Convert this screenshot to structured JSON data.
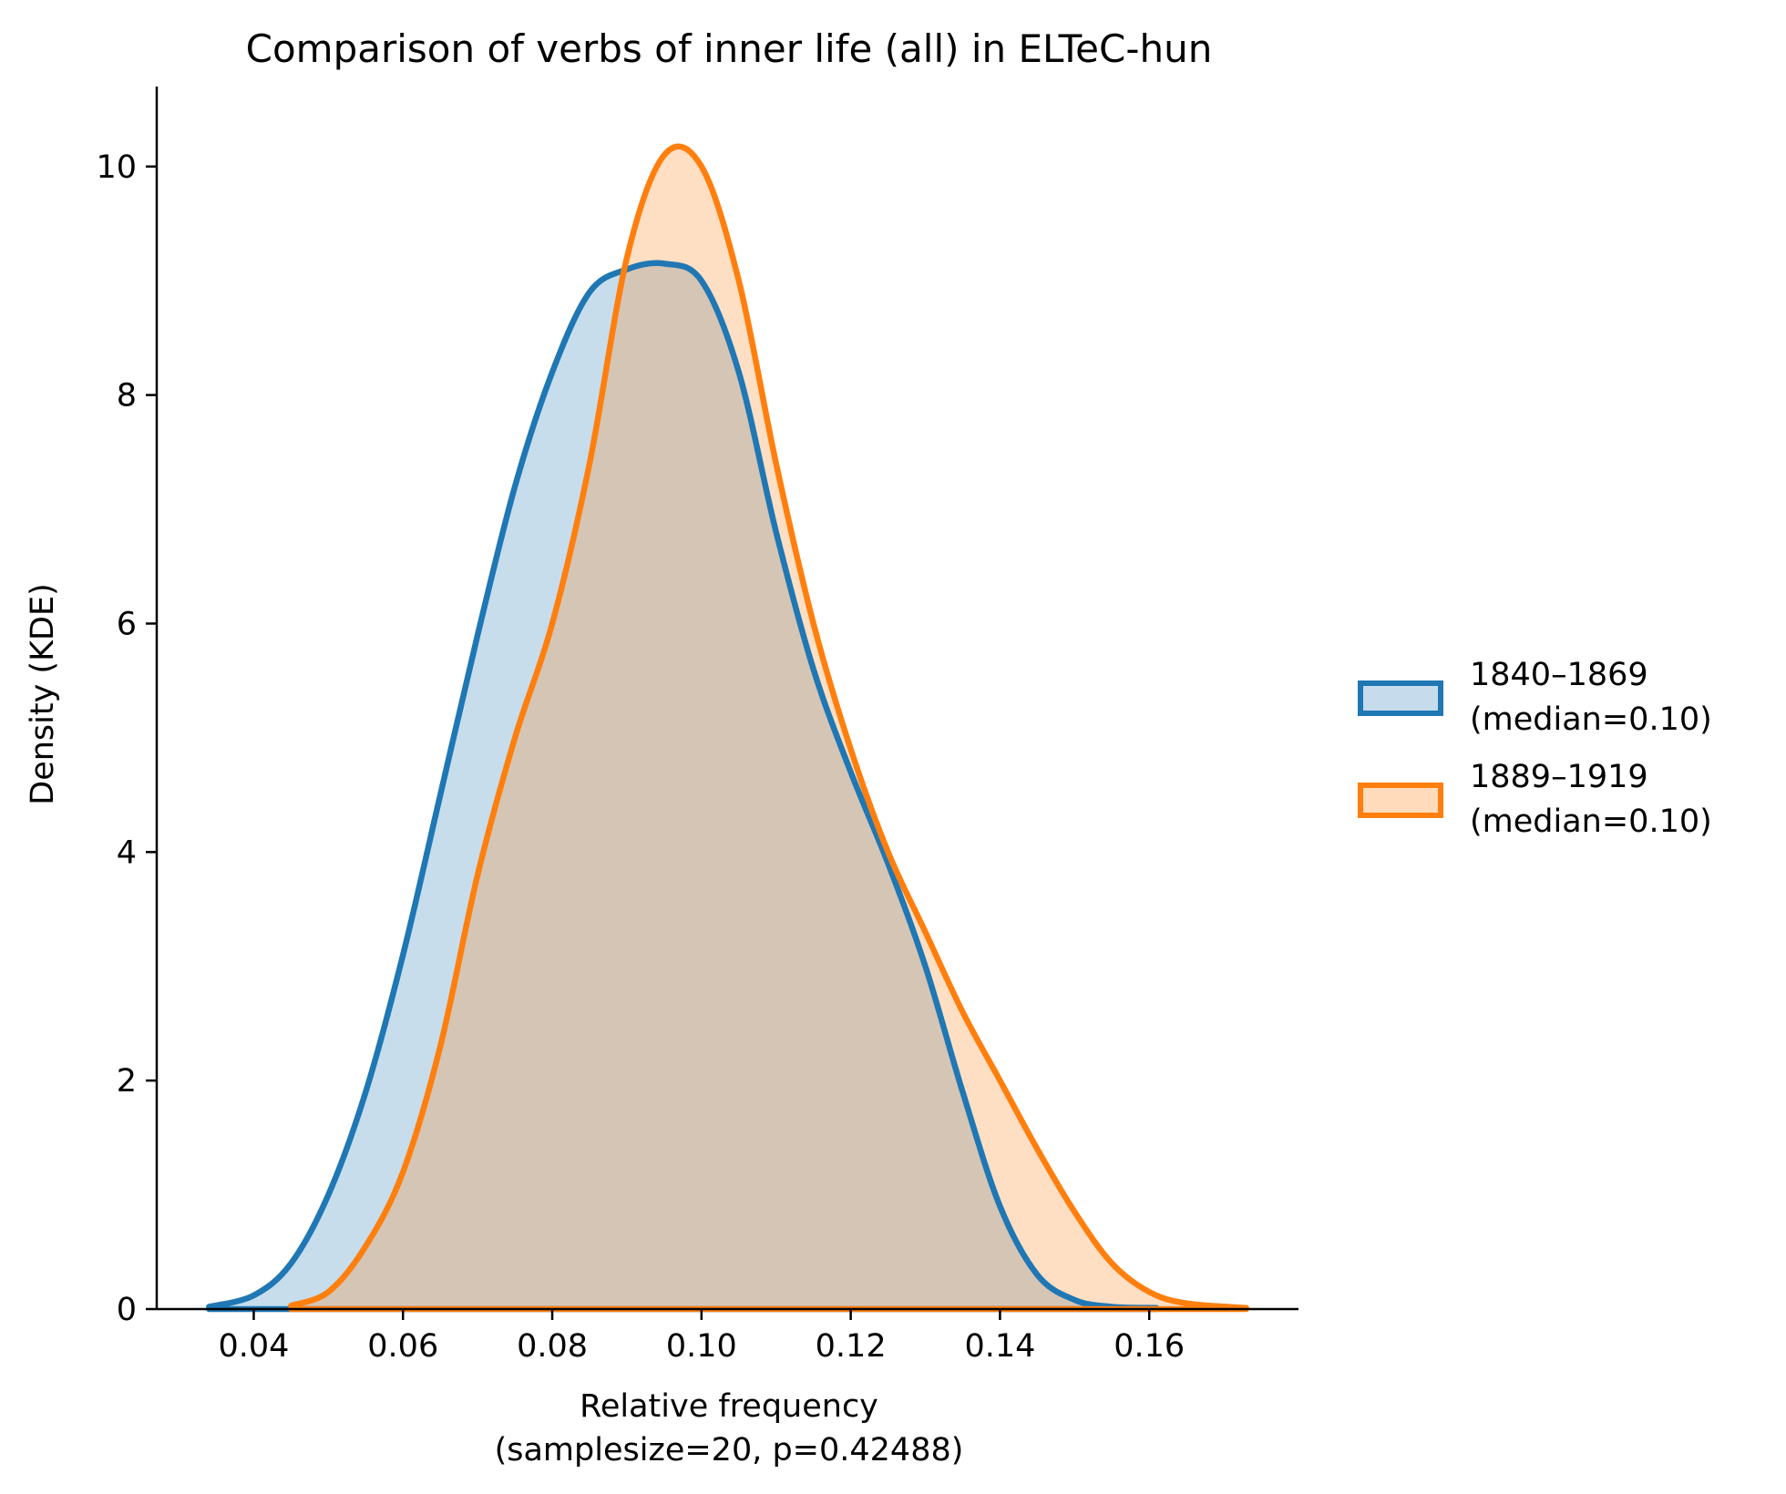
{
  "chart_data": {
    "type": "area",
    "title": "Comparison of verbs of inner life (all) in ELTeC-hun",
    "xlabel": "Relative frequency",
    "xlabel_sub": "(samplesize=20, p=0.42488)",
    "ylabel": "Density (KDE)",
    "xlim": [
      0.027,
      0.18
    ],
    "ylim": [
      0,
      10.7
    ],
    "x_ticks": [
      0.04,
      0.06,
      0.08,
      0.1,
      0.12,
      0.14,
      0.16
    ],
    "x_tick_labels": [
      "0.04",
      "0.06",
      "0.08",
      "0.10",
      "0.12",
      "0.14",
      "0.16"
    ],
    "y_ticks": [
      0,
      2,
      4,
      6,
      8,
      10
    ],
    "y_tick_labels": [
      "0",
      "2",
      "4",
      "6",
      "8",
      "10"
    ],
    "grid": false,
    "legend_position": "right",
    "series": [
      {
        "name": "1840–1869",
        "name_sub": "(median=0.10)",
        "color": "#1f77b4",
        "fill_color": "#c6dbeb",
        "x": [
          0.034,
          0.04,
          0.045,
          0.05,
          0.055,
          0.06,
          0.065,
          0.07,
          0.075,
          0.08,
          0.085,
          0.09,
          0.095,
          0.1,
          0.105,
          0.11,
          0.115,
          0.12,
          0.125,
          0.13,
          0.135,
          0.14,
          0.145,
          0.15,
          0.155,
          0.161
        ],
        "y": [
          0.02,
          0.12,
          0.4,
          1.0,
          1.9,
          3.1,
          4.5,
          5.9,
          7.2,
          8.2,
          8.9,
          9.1,
          9.15,
          9.0,
          8.2,
          6.8,
          5.6,
          4.7,
          3.9,
          3.0,
          1.9,
          0.9,
          0.3,
          0.08,
          0.02,
          0.01
        ]
      },
      {
        "name": "1889–1919",
        "name_sub": "(median=0.10)",
        "color": "#ff7f0e",
        "fill_color": "#ffdbbc",
        "x": [
          0.045,
          0.05,
          0.055,
          0.06,
          0.065,
          0.07,
          0.075,
          0.08,
          0.085,
          0.09,
          0.095,
          0.1,
          0.105,
          0.11,
          0.115,
          0.12,
          0.125,
          0.13,
          0.135,
          0.14,
          0.145,
          0.15,
          0.155,
          0.16,
          0.165,
          0.173
        ],
        "y": [
          0.03,
          0.15,
          0.55,
          1.2,
          2.3,
          3.8,
          5.0,
          6.0,
          7.4,
          9.2,
          10.1,
          10.0,
          9.0,
          7.4,
          6.0,
          4.9,
          4.0,
          3.3,
          2.6,
          2.0,
          1.4,
          0.85,
          0.4,
          0.15,
          0.05,
          0.01
        ]
      }
    ]
  }
}
